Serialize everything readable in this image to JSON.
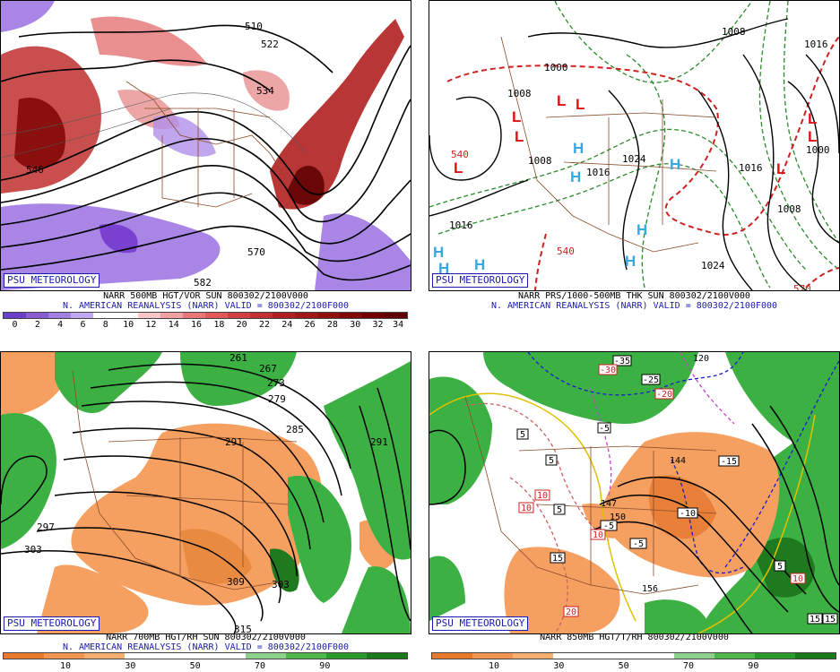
{
  "panels": {
    "tl": {
      "psu": "PSU METEOROLOGY",
      "line1": "NARR 500MB HGT/VOR SUN 800302/2100V000",
      "line2": "N. AMERICAN REANALYSIS (NARR) VALID = 800302/2100F000",
      "scale": [
        "0",
        "2",
        "4",
        "6",
        "8",
        "10",
        "12",
        "14",
        "16",
        "18",
        "20",
        "22",
        "24",
        "26",
        "28",
        "30",
        "32",
        "34"
      ],
      "contour_labels": [
        "510",
        "522",
        "534",
        "546",
        "582",
        "570"
      ]
    },
    "tr": {
      "psu": "PSU METEOROLOGY",
      "line1": "NARR PRS/1000-500MB THK SUN 800302/2100V000",
      "line2": "N. AMERICAN REANALYSIS (NARR) VALID = 800302/2100F000",
      "contour_labels": [
        "1008",
        "1016",
        "1024",
        "1000",
        "1008",
        "1016",
        "540",
        "540",
        "570",
        "1016",
        "1008",
        "1024",
        "1008",
        "1016",
        "1000"
      ]
    },
    "bl": {
      "psu": "PSU METEOROLOGY",
      "line1": "NARR 700MB HGT/RH SUN 800302/2100V000",
      "line2": "N. AMERICAN REANALYSIS (NARR) VALID = 800302/2100F000",
      "scale": [
        "10",
        "30",
        "50",
        "70",
        "90"
      ],
      "contour_labels": [
        "261",
        "267",
        "273",
        "279",
        "285",
        "291",
        "297",
        "303",
        "309",
        "303",
        "315",
        "291"
      ]
    },
    "br": {
      "psu": "PSU METEOROLOGY",
      "line1": "NARR 850MB HGT/T/RH 800302/2100V000",
      "scale": [
        "10",
        "30",
        "50",
        "70",
        "90"
      ],
      "contour_labels": [
        "-35",
        "-30",
        "-25",
        "-20",
        "120",
        "-5",
        "5",
        "5",
        "-15",
        "-10",
        "-5",
        "-5",
        "10",
        "10",
        "10",
        "15",
        "150",
        "156",
        "144",
        "147",
        "20",
        "5",
        "10",
        "15",
        "15",
        "5"
      ]
    }
  },
  "colors": {
    "vort_high": "#b02020",
    "vort_low": "#8a5ad0",
    "rh_moist": "#2ea82e",
    "rh_dry": "#f09a4a",
    "psu_blue": "#1a1ab0"
  }
}
